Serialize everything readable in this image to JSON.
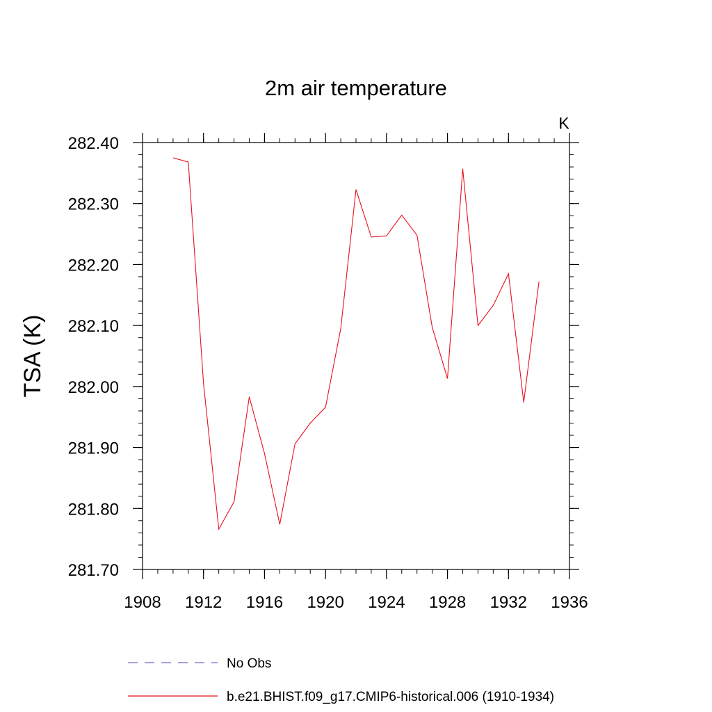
{
  "chart_data": {
    "type": "line",
    "title": "2m air temperature",
    "units_label": "K",
    "xlabel": "",
    "ylabel": "TSA  (K)",
    "xlim": [
      1908,
      1936
    ],
    "ylim": [
      281.7,
      282.4
    ],
    "x_ticks": [
      "1908",
      "1912",
      "1916",
      "1920",
      "1924",
      "1928",
      "1932",
      "1936"
    ],
    "y_ticks": [
      "281.70",
      "281.80",
      "281.90",
      "282.00",
      "282.10",
      "282.20",
      "282.30",
      "282.40"
    ],
    "series": [
      {
        "name": "b.e21.BHIST.f09_g17.CMIP6-historical.006 (1910-1934)",
        "color": "#e8101a",
        "x": [
          1910,
          1911,
          1912,
          1913,
          1914,
          1915,
          1916,
          1917,
          1918,
          1919,
          1920,
          1921,
          1922,
          1923,
          1924,
          1925,
          1926,
          1927,
          1928,
          1929,
          1930,
          1931,
          1932,
          1933,
          1934
        ],
        "values": [
          282.375,
          282.368,
          282.005,
          281.766,
          281.811,
          281.983,
          281.89,
          281.774,
          281.906,
          281.94,
          281.966,
          282.095,
          282.323,
          282.245,
          282.247,
          282.281,
          282.248,
          282.097,
          282.013,
          282.357,
          282.1,
          282.133,
          282.185,
          281.974,
          282.172
        ]
      }
    ],
    "legend": [
      {
        "label": "No Obs",
        "style": "dashed",
        "color": "#6a6acb"
      },
      {
        "label": "b.e21.BHIST.f09_g17.CMIP6-historical.006 (1910-1934)",
        "style": "solid",
        "color": "#e8101a"
      }
    ]
  }
}
